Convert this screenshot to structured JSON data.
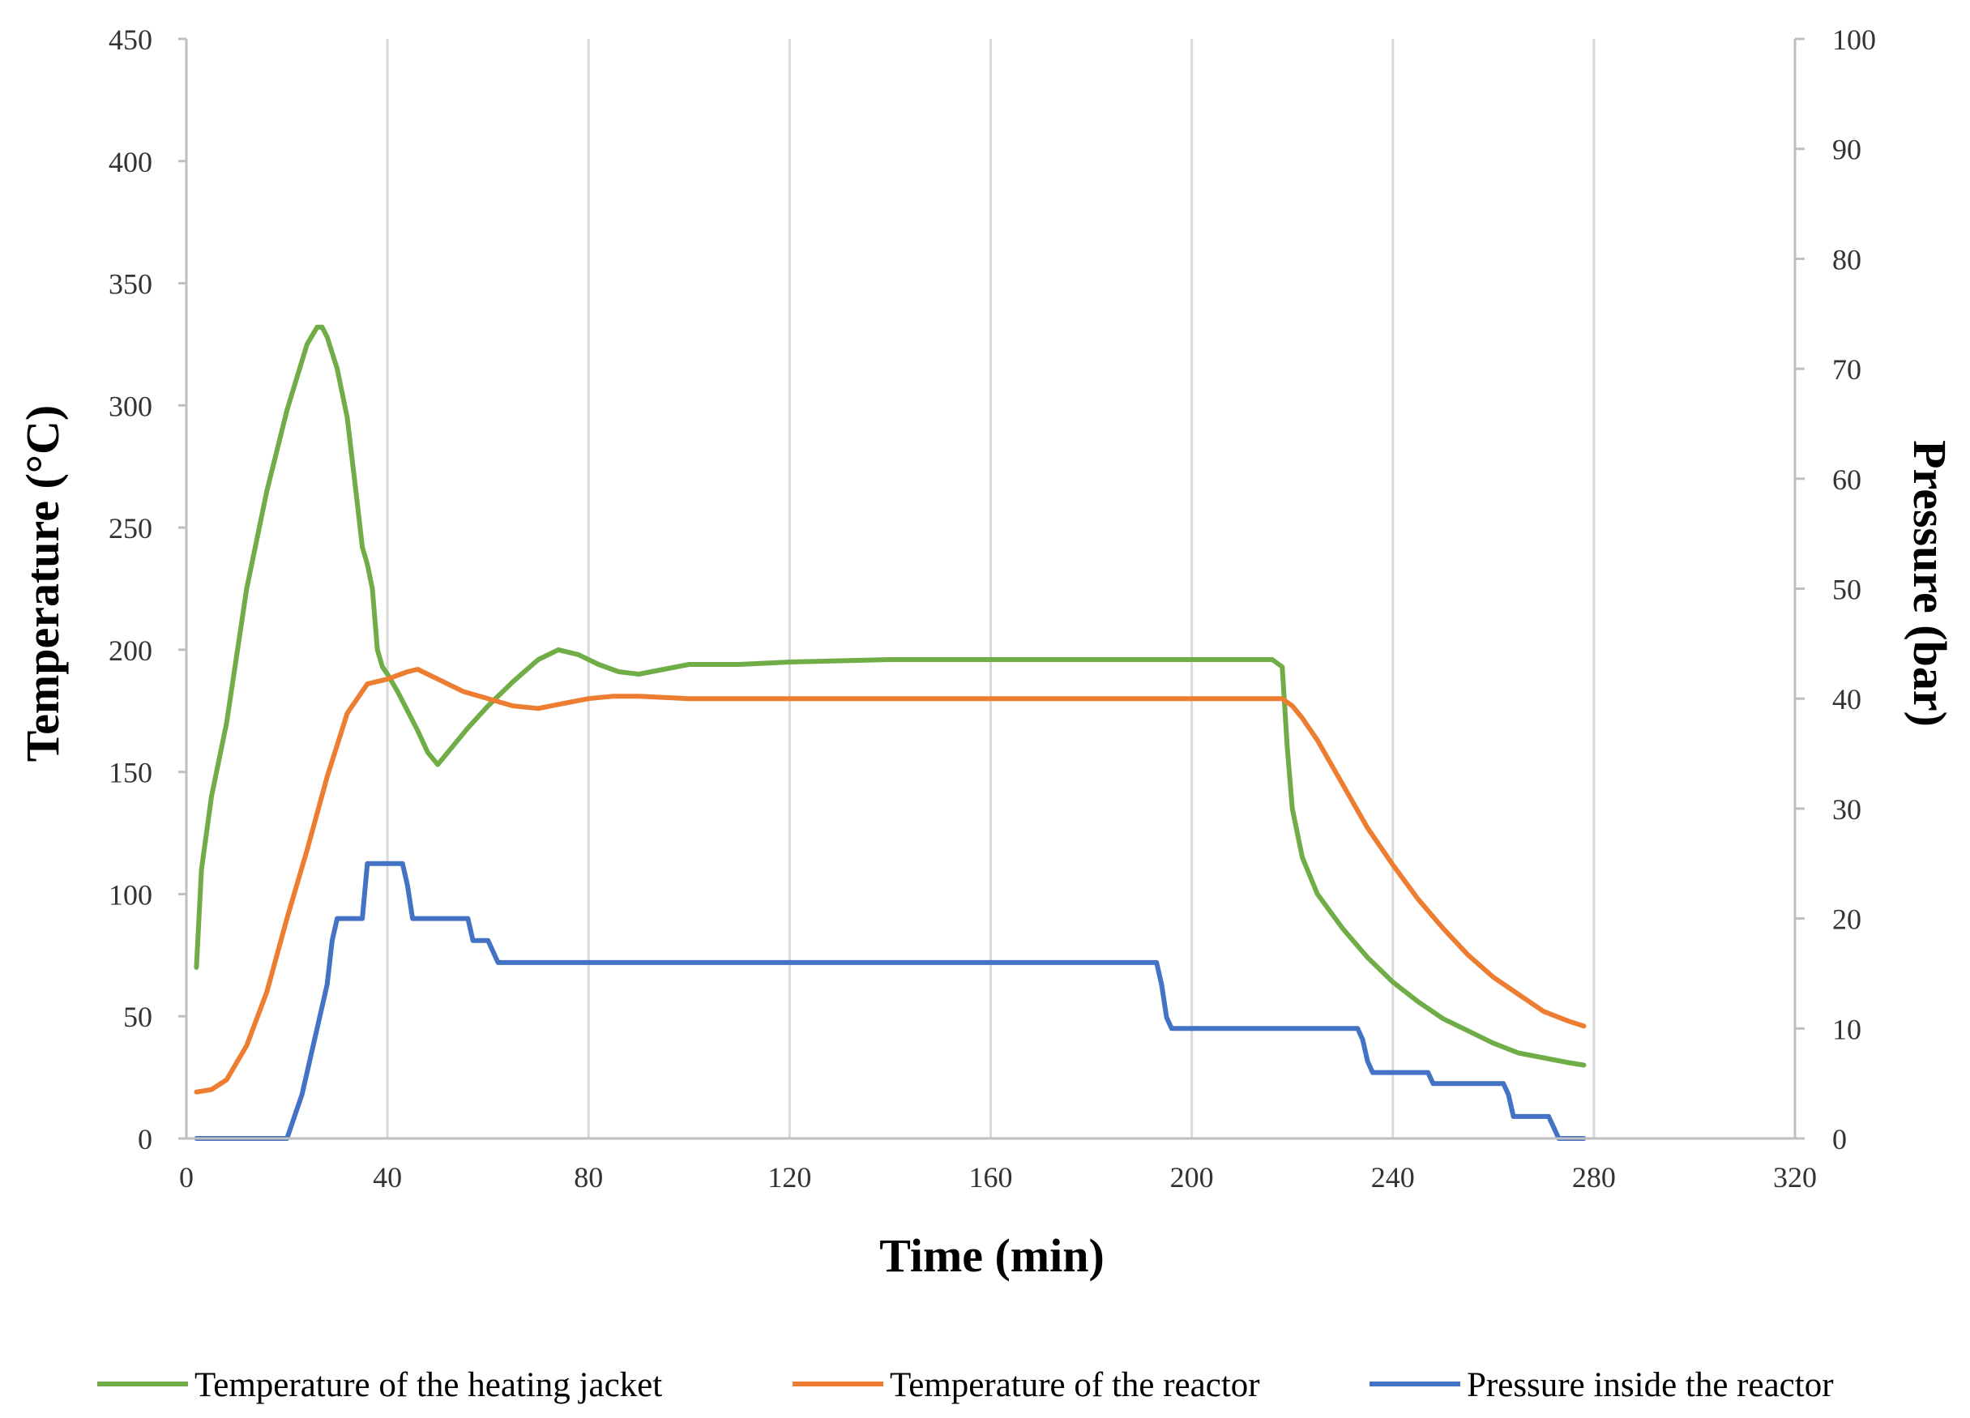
{
  "chart_data": {
    "type": "line",
    "title": "",
    "xlabel": "Time (min)",
    "ylabel_left": "Temperature (°C)",
    "ylabel_right": "Pressure (bar)",
    "xlim": [
      0,
      320
    ],
    "xticks": [
      0,
      40,
      80,
      120,
      160,
      200,
      240,
      280,
      320
    ],
    "ylim_left": [
      0,
      450
    ],
    "yticks_left": [
      0,
      50,
      100,
      150,
      200,
      250,
      300,
      350,
      400,
      450
    ],
    "ylim_right": [
      0,
      100
    ],
    "yticks_right": [
      0,
      10,
      20,
      30,
      40,
      50,
      60,
      70,
      80,
      90,
      100
    ],
    "grid": "vertical",
    "legend_position": "bottom",
    "series": [
      {
        "name": "Temperature of the heating jacket",
        "axis": "left",
        "color": "#70AD47",
        "x": [
          2,
          3,
          5,
          8,
          12,
          16,
          20,
          24,
          26,
          27,
          28,
          30,
          32,
          34,
          35,
          36,
          37,
          38,
          39,
          40,
          42,
          44,
          46,
          48,
          50,
          52,
          56,
          60,
          65,
          70,
          74,
          78,
          82,
          86,
          90,
          95,
          100,
          110,
          120,
          140,
          160,
          180,
          200,
          210,
          216,
          218,
          219,
          220,
          222,
          225,
          230,
          235,
          240,
          245,
          250,
          255,
          260,
          265,
          270,
          275,
          278
        ],
        "y": [
          70,
          110,
          140,
          170,
          225,
          265,
          298,
          325,
          332,
          332,
          328,
          315,
          295,
          260,
          242,
          235,
          225,
          200,
          193,
          190,
          183,
          175,
          167,
          158,
          153,
          158,
          168,
          177,
          187,
          196,
          200,
          198,
          194,
          191,
          190,
          192,
          194,
          194,
          195,
          196,
          196,
          196,
          196,
          196,
          196,
          193,
          160,
          135,
          115,
          100,
          86,
          74,
          64,
          56,
          49,
          44,
          39,
          35,
          33,
          31,
          30
        ]
      },
      {
        "name": "Temperature of the reactor",
        "axis": "left",
        "color": "#ED7D31",
        "x": [
          2,
          5,
          8,
          12,
          16,
          20,
          24,
          28,
          32,
          36,
          40,
          44,
          46,
          48,
          50,
          55,
          60,
          65,
          70,
          75,
          80,
          85,
          90,
          100,
          120,
          140,
          160,
          180,
          200,
          210,
          218,
          220,
          222,
          225,
          230,
          235,
          240,
          245,
          250,
          255,
          260,
          265,
          270,
          275,
          278
        ],
        "y": [
          19,
          20,
          24,
          38,
          60,
          90,
          118,
          148,
          174,
          186,
          188,
          191,
          192,
          190,
          188,
          183,
          180,
          177,
          176,
          178,
          180,
          181,
          181,
          180,
          180,
          180,
          180,
          180,
          180,
          180,
          180,
          177,
          172,
          163,
          145,
          127,
          112,
          98,
          86,
          75,
          66,
          59,
          52,
          48,
          46
        ]
      },
      {
        "name": "Pressure inside the reactor",
        "axis": "right",
        "color": "#4472C4",
        "x": [
          2,
          10,
          18,
          20,
          23,
          26,
          28,
          29,
          30,
          31,
          32,
          33,
          34,
          35,
          36,
          37,
          38,
          39,
          40,
          41,
          42,
          43,
          44,
          45,
          46,
          50,
          55,
          56,
          57,
          58,
          59,
          60,
          61,
          62,
          63,
          70,
          100,
          150,
          190,
          193,
          194,
          195,
          196,
          197,
          200,
          220,
          232,
          233,
          234,
          235,
          236,
          240,
          245,
          246,
          247,
          248,
          250,
          255,
          261,
          262,
          263,
          264,
          265,
          266,
          268,
          270,
          271,
          272,
          273,
          275,
          278
        ],
        "y": [
          0,
          0,
          0,
          0,
          4,
          10,
          14,
          18,
          20,
          20,
          20,
          20,
          20,
          20,
          25,
          25,
          25,
          25,
          25,
          25,
          25,
          25,
          23,
          20,
          20,
          20,
          20,
          20,
          18,
          18,
          18,
          18,
          17,
          16,
          16,
          16,
          16,
          16,
          16,
          16,
          14,
          11,
          10,
          10,
          10,
          10,
          10,
          10,
          9,
          7,
          6,
          6,
          6,
          6,
          6,
          5,
          5,
          5,
          5,
          5,
          4,
          2,
          2,
          2,
          2,
          2,
          2,
          1,
          0,
          0,
          0
        ]
      }
    ]
  }
}
